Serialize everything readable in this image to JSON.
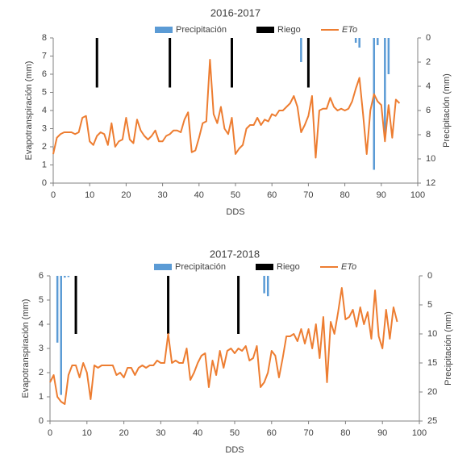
{
  "chart_data": [
    {
      "type": "combo",
      "title": "2016-2017",
      "xlabel": "DDS",
      "ylabel": "Evapotranspiración  (mm)",
      "y2label": "Precipitación  (mm)",
      "xlim": [
        0,
        100
      ],
      "xticks": [
        0,
        10,
        20,
        30,
        40,
        50,
        60,
        70,
        80,
        90,
        100
      ],
      "ylim": [
        0,
        8
      ],
      "yticks": [
        0,
        1,
        2,
        3,
        4,
        5,
        6,
        7,
        8
      ],
      "y2lim": [
        0,
        12
      ],
      "y2ticks": [
        0,
        2,
        4,
        6,
        8,
        10,
        12
      ],
      "y2_inverted": true,
      "legend": "top",
      "series": [
        {
          "name": "Precipitación",
          "type": "bar",
          "axis": "y2",
          "color": "#5b9bd5",
          "x": [
            68,
            83,
            84,
            88,
            89,
            91,
            92
          ],
          "values": [
            2.0,
            0.4,
            0.8,
            10.9,
            0.6,
            8.1,
            3.0
          ]
        },
        {
          "name": "Riego",
          "type": "bar",
          "axis": "y2",
          "color": "#000000",
          "x": [
            12,
            32,
            49,
            70
          ],
          "values": [
            4.1,
            4.1,
            4.1,
            4.1
          ]
        },
        {
          "name": "ETo",
          "type": "line",
          "color": "#ed7d31",
          "x": [
            0,
            1,
            2,
            3,
            4,
            5,
            6,
            7,
            8,
            9,
            10,
            11,
            12,
            13,
            14,
            15,
            16,
            17,
            18,
            19,
            20,
            21,
            22,
            23,
            24,
            25,
            26,
            27,
            28,
            29,
            30,
            31,
            32,
            33,
            34,
            35,
            36,
            37,
            38,
            39,
            40,
            41,
            42,
            43,
            44,
            45,
            46,
            47,
            48,
            49,
            50,
            51,
            52,
            53,
            54,
            55,
            56,
            57,
            58,
            59,
            60,
            61,
            62,
            63,
            64,
            65,
            66,
            67,
            68,
            69,
            70,
            71,
            72,
            73,
            74,
            75,
            76,
            77,
            78,
            79,
            80,
            81,
            82,
            83,
            84,
            85,
            86,
            87,
            88,
            89,
            90,
            91,
            92,
            93,
            94,
            95
          ],
          "values": [
            1.6,
            2.5,
            2.7,
            2.8,
            2.8,
            2.8,
            2.7,
            2.8,
            3.6,
            3.7,
            2.3,
            2.1,
            2.6,
            2.8,
            2.7,
            2.1,
            3.3,
            2.0,
            2.3,
            2.4,
            3.6,
            2.4,
            2.2,
            3.5,
            2.9,
            2.6,
            2.4,
            2.6,
            2.9,
            2.3,
            2.3,
            2.6,
            2.7,
            2.9,
            2.9,
            2.8,
            3.5,
            3.9,
            1.7,
            1.8,
            2.5,
            3.3,
            3.4,
            6.8,
            3.8,
            3.3,
            4.2,
            3.0,
            2.7,
            3.6,
            1.6,
            1.9,
            2.1,
            3.0,
            3.2,
            3.2,
            3.6,
            3.2,
            3.5,
            3.4,
            3.8,
            3.7,
            4.0,
            4.0,
            4.2,
            4.4,
            4.8,
            4.2,
            2.8,
            3.2,
            3.7,
            4.8,
            1.4,
            4.0,
            4.1,
            4.1,
            4.7,
            4.2,
            4.0,
            4.1,
            4.0,
            4.1,
            4.5,
            5.2,
            5.8,
            3.8,
            1.6,
            4.0,
            4.9,
            4.5,
            4.3,
            2.3,
            4.3,
            2.5,
            4.6,
            4.4
          ]
        }
      ]
    },
    {
      "type": "combo",
      "title": "2017-2018",
      "xlabel": "DDS",
      "ylabel": "Evapotranspiración  (mm)",
      "y2label": "Precipitación  (mm)",
      "xlim": [
        0,
        100
      ],
      "xticks": [
        0,
        10,
        20,
        30,
        40,
        50,
        60,
        70,
        80,
        90,
        100
      ],
      "ylim": [
        0,
        6
      ],
      "yticks": [
        0,
        1,
        2,
        3,
        4,
        5,
        6
      ],
      "y2lim": [
        0,
        25
      ],
      "y2ticks": [
        0,
        5,
        10,
        15,
        20,
        25
      ],
      "y2_inverted": true,
      "legend": "top",
      "series": [
        {
          "name": "Precipitación",
          "type": "bar",
          "axis": "y2",
          "color": "#5b9bd5",
          "x": [
            2,
            3,
            4,
            5,
            58,
            59
          ],
          "values": [
            11.5,
            20.5,
            0.3,
            0.2,
            3.0,
            3.5
          ]
        },
        {
          "name": "Riego",
          "type": "bar",
          "axis": "y2",
          "color": "#000000",
          "x": [
            7,
            32,
            51
          ],
          "values": [
            10,
            10,
            10
          ]
        },
        {
          "name": "ETo",
          "type": "line",
          "color": "#ed7d31",
          "x": [
            0,
            1,
            2,
            3,
            4,
            5,
            6,
            7,
            8,
            9,
            10,
            11,
            12,
            13,
            14,
            15,
            16,
            17,
            18,
            19,
            20,
            21,
            22,
            23,
            24,
            25,
            26,
            27,
            28,
            29,
            30,
            31,
            32,
            33,
            34,
            35,
            36,
            37,
            38,
            39,
            40,
            41,
            42,
            43,
            44,
            45,
            46,
            47,
            48,
            49,
            50,
            51,
            52,
            53,
            54,
            55,
            56,
            57,
            58,
            59,
            60,
            61,
            62,
            63,
            64,
            65,
            66,
            67,
            68,
            69,
            70,
            71,
            72,
            73,
            74,
            75,
            76,
            77,
            78,
            79,
            80,
            81,
            82,
            83,
            84,
            85,
            86,
            87,
            88,
            89,
            90,
            91,
            92,
            93,
            94
          ],
          "values": [
            1.6,
            1.9,
            1.0,
            0.8,
            0.7,
            1.9,
            2.3,
            2.3,
            1.8,
            2.4,
            2.0,
            0.9,
            2.3,
            2.2,
            2.3,
            2.3,
            2.3,
            2.3,
            1.9,
            2.0,
            1.8,
            2.2,
            2.2,
            1.9,
            2.2,
            2.3,
            2.2,
            2.3,
            2.3,
            2.5,
            2.4,
            2.4,
            3.6,
            2.4,
            2.5,
            2.4,
            2.4,
            3.0,
            1.7,
            2.0,
            2.4,
            2.7,
            2.8,
            1.4,
            2.5,
            1.9,
            2.9,
            2.2,
            2.9,
            3.0,
            2.8,
            3.0,
            2.9,
            3.1,
            2.5,
            2.6,
            3.1,
            1.4,
            1.6,
            2.0,
            2.9,
            2.7,
            1.8,
            2.6,
            3.5,
            3.5,
            3.6,
            3.3,
            3.8,
            3.2,
            3.8,
            3.0,
            4.0,
            2.6,
            4.3,
            1.6,
            4.1,
            3.6,
            4.5,
            5.5,
            4.2,
            4.3,
            4.6,
            3.9,
            4.7,
            4.0,
            4.5,
            3.4,
            5.4,
            3.5,
            3.0,
            4.6,
            3.4,
            4.7,
            4.1
          ]
        }
      ]
    }
  ]
}
